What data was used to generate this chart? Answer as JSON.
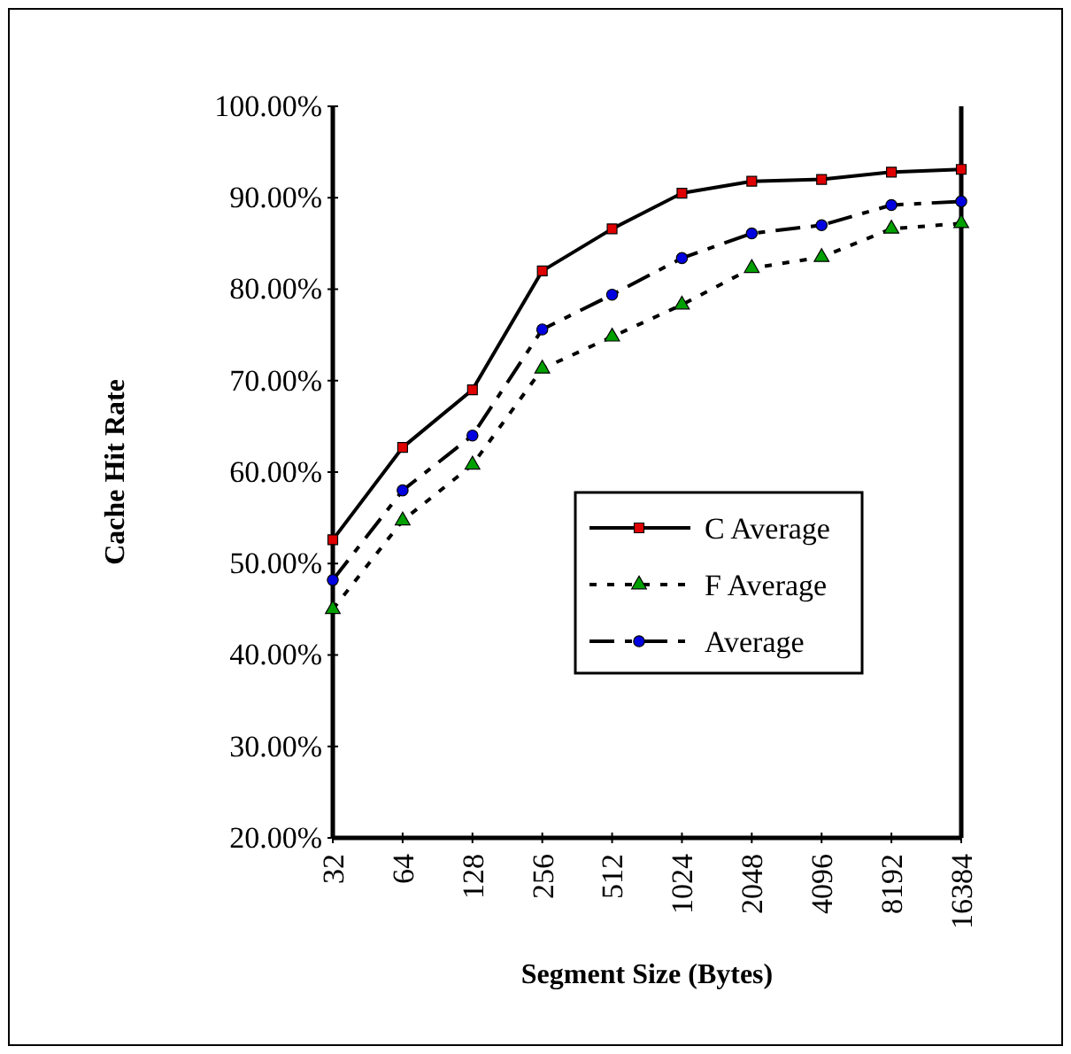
{
  "chart_data": {
    "type": "line",
    "xlabel": "Segment Size (Bytes)",
    "ylabel": "Cache Hit Rate",
    "categories": [
      "32",
      "64",
      "128",
      "256",
      "512",
      "1024",
      "2048",
      "4096",
      "8192",
      "16384"
    ],
    "ylim": [
      20,
      100
    ],
    "yticks": [
      {
        "value": 20,
        "label": "20.00%"
      },
      {
        "value": 30,
        "label": "30.00%"
      },
      {
        "value": 40,
        "label": "40.00%"
      },
      {
        "value": 50,
        "label": "50.00%"
      },
      {
        "value": 60,
        "label": "60.00%"
      },
      {
        "value": 70,
        "label": "70.00%"
      },
      {
        "value": 80,
        "label": "80.00%"
      },
      {
        "value": 90,
        "label": "90.00%"
      },
      {
        "value": 100,
        "label": "100.00%"
      }
    ],
    "legend": "right",
    "grid": false,
    "series": [
      {
        "name": "C Average",
        "color": "#e00000",
        "marker": "square",
        "line_style": "solid",
        "values": [
          52.6,
          62.7,
          69,
          82,
          86.6,
          90.5,
          91.8,
          92,
          92.8,
          93.1
        ]
      },
      {
        "name": "F Average",
        "color": "#00a000",
        "marker": "triangle",
        "line_style": "dotted",
        "values": [
          45,
          54.7,
          60.8,
          71.3,
          74.8,
          78.3,
          82.3,
          83.5,
          86.6,
          87.2
        ]
      },
      {
        "name": "Average",
        "color": "#0000e0",
        "marker": "circle",
        "line_style": "dashed",
        "values": [
          48.2,
          58,
          64,
          75.6,
          79.4,
          83.4,
          86.1,
          87,
          89.2,
          89.6
        ]
      }
    ]
  }
}
